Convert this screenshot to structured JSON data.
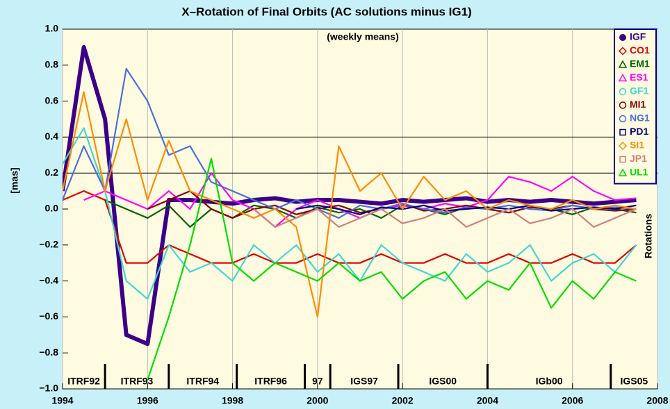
{
  "chart_data": {
    "type": "line",
    "title": "X–Rotation of Final Orbits (AC solutions minus IG1)",
    "subtitle": "(weekly means)",
    "ylabel": "[mas]",
    "right_label": "Rotations",
    "x": [
      1994,
      1994.5,
      1995,
      1995.5,
      1996,
      1996.5,
      1997,
      1997.5,
      1998,
      1998.5,
      1999,
      1999.5,
      2000,
      2000.5,
      2001,
      2001.5,
      2002,
      2002.5,
      2003,
      2003.5,
      2004,
      2004.5,
      2005,
      2005.5,
      2006,
      2006.5,
      2007,
      2007.5
    ],
    "xlim": [
      1994,
      2008
    ],
    "xticks": [
      1994,
      1996,
      1998,
      2000,
      2002,
      2004,
      2006,
      2008
    ],
    "ylim": [
      -1,
      1
    ],
    "yticks": [
      {
        "value": 1,
        "label": "1.0"
      },
      0.8,
      0.6,
      0.4,
      0.2,
      {
        "value": 0,
        "label": "0.0"
      },
      {
        "value": -0.2,
        "label": "−0.2"
      },
      {
        "value": -0.4,
        "label": "−0.4"
      },
      {
        "value": -0.6,
        "label": "−0.6"
      },
      {
        "value": -0.8,
        "label": "−0.8"
      },
      {
        "value": -1,
        "label": "−1.0"
      }
    ],
    "grid_y": [
      0.4,
      0.2
    ],
    "legend": "top-right",
    "series": [
      {
        "name": "IGF",
        "color": "#3c0088",
        "marker": "dot",
        "values": [
          0.1,
          0.9,
          0.5,
          -0.7,
          -0.75,
          0.05,
          0.05,
          0.04,
          0.03,
          0.05,
          0.06,
          0.04,
          0.05,
          0.05,
          0.04,
          0.03,
          0.05,
          0.04,
          0.05,
          0.06,
          0.04,
          0.05,
          0.04,
          0.05,
          0.04,
          0.03,
          0.04,
          0.05
        ]
      },
      {
        "name": "CO1",
        "color": "#e00000",
        "marker": "diamond",
        "values": [
          0.05,
          0.1,
          0.05,
          -0.3,
          -0.3,
          -0.2,
          -0.25,
          -0.3,
          -0.3,
          -0.25,
          -0.3,
          -0.3,
          -0.25,
          -0.3,
          -0.3,
          -0.25,
          -0.3,
          -0.3,
          -0.25,
          -0.3,
          -0.3,
          -0.25,
          -0.3,
          -0.3,
          -0.25,
          -0.3,
          -0.3,
          -0.2
        ]
      },
      {
        "name": "EM1",
        "color": "#006400",
        "marker": "triangle",
        "values": [
          null,
          null,
          0.05,
          0.0,
          -0.05,
          0.02,
          -0.1,
          0.0,
          -0.05,
          0.02,
          0.0,
          -0.05,
          0.01,
          -0.02,
          0.0,
          -0.05,
          0.02,
          0.0,
          -0.03,
          0.01,
          0.0,
          -0.02,
          0.01,
          0.0,
          -0.03,
          0.01,
          0.0,
          -0.02
        ]
      },
      {
        "name": "ES1",
        "color": "#ff00ff",
        "marker": "triangle",
        "values": [
          null,
          0.05,
          0.1,
          0.05,
          0.0,
          0.1,
          0.0,
          0.2,
          0.05,
          0.0,
          -0.1,
          0.0,
          0.05,
          0.0,
          -0.05,
          0.0,
          0.02,
          0.0,
          0.03,
          0.01,
          0.05,
          0.18,
          0.15,
          0.1,
          0.18,
          0.1,
          0.05,
          0.06
        ]
      },
      {
        "name": "GF1",
        "color": "#40d8d0",
        "marker": "circle",
        "values": [
          0.25,
          0.45,
          0.1,
          -0.4,
          -0.5,
          -0.2,
          -0.35,
          -0.3,
          -0.4,
          -0.2,
          -0.3,
          -0.2,
          -0.35,
          -0.25,
          -0.4,
          -0.2,
          -0.3,
          -0.35,
          -0.4,
          -0.25,
          -0.35,
          -0.3,
          -0.2,
          -0.4,
          -0.3,
          -0.25,
          -0.35,
          -0.2
        ]
      },
      {
        "name": "MI1",
        "color": "#8b0000",
        "marker": "circle",
        "values": [
          null,
          null,
          null,
          null,
          0.0,
          0.05,
          0.1,
          0.0,
          -0.05,
          0.0,
          0.02,
          -0.03,
          0.0,
          0.02,
          -0.02,
          0.0,
          0.03,
          -0.01,
          0.0,
          0.02,
          0.0,
          -0.02,
          0.01,
          0.0,
          0.02,
          0.0,
          -0.01,
          0.0
        ]
      },
      {
        "name": "NG1",
        "color": "#4a70e0",
        "marker": "circle",
        "values": [
          0.05,
          0.35,
          0.1,
          0.78,
          0.6,
          0.3,
          0.35,
          0.15,
          0.1,
          0.05,
          0.0,
          0.05,
          0.0,
          -0.05,
          0.02,
          0.0,
          0.03,
          0.0,
          -0.02,
          0.01,
          0.0,
          0.02,
          0.0,
          -0.01,
          0.02,
          0.0,
          0.01,
          0.0
        ]
      },
      {
        "name": "PD1",
        "color": "#000080",
        "marker": "square",
        "values": [
          null,
          null,
          null,
          null,
          null,
          null,
          null,
          null,
          null,
          null,
          null,
          0.0,
          0.02,
          0.0,
          -0.03,
          0.01,
          0.0,
          0.02,
          -0.01,
          0.0,
          0.01,
          0.0,
          0.02,
          -0.01,
          0.0,
          0.01,
          0.0,
          0.02
        ]
      },
      {
        "name": "SI1",
        "color": "#ff8c00",
        "marker": "diamond",
        "values": [
          0.1,
          0.65,
          0.1,
          0.5,
          0.05,
          0.38,
          0.1,
          0.05,
          0.0,
          -0.05,
          0.0,
          -0.1,
          -0.6,
          0.35,
          0.1,
          0.2,
          0.0,
          0.18,
          0.05,
          0.1,
          0.0,
          0.05,
          0.02,
          0.0,
          0.05,
          0.0,
          0.02,
          0.0
        ]
      },
      {
        "name": "JP1",
        "color": "#d08080",
        "marker": "square",
        "values": [
          null,
          null,
          null,
          null,
          null,
          null,
          null,
          null,
          null,
          0.0,
          -0.1,
          -0.05,
          0.0,
          -0.1,
          -0.05,
          0.0,
          -0.08,
          -0.05,
          0.0,
          -0.1,
          -0.05,
          0.0,
          -0.08,
          -0.05,
          0.0,
          -0.1,
          -0.05,
          0.0
        ]
      },
      {
        "name": "UL1",
        "color": "#00dd00",
        "marker": "triangle",
        "values": [
          null,
          null,
          null,
          null,
          -0.95,
          -0.6,
          -0.2,
          0.28,
          -0.3,
          -0.4,
          -0.3,
          -0.35,
          -0.4,
          -0.3,
          -0.4,
          -0.35,
          -0.5,
          -0.4,
          -0.35,
          -0.5,
          -0.4,
          -0.45,
          -0.3,
          -0.55,
          -0.4,
          -0.5,
          -0.35,
          -0.4
        ]
      }
    ],
    "frames": [
      {
        "label": "ITRF92",
        "start": 1994,
        "end": 1995
      },
      {
        "label": "ITRF93",
        "start": 1995,
        "end": 1996.5
      },
      {
        "label": "ITRF94",
        "start": 1996.5,
        "end": 1998.1
      },
      {
        "label": "ITRF96",
        "start": 1998.1,
        "end": 1999.7
      },
      {
        "label": "97",
        "start": 1999.7,
        "end": 2000.3
      },
      {
        "label": "IGS97",
        "start": 2000.3,
        "end": 2001.9
      },
      {
        "label": "IGS00",
        "start": 2001.9,
        "end": 2004.0
      },
      {
        "label": "IGb00",
        "start": 2004.0,
        "end": 2006.9
      },
      {
        "label": "IGS05",
        "start": 2006.9,
        "end": 2008
      }
    ]
  }
}
